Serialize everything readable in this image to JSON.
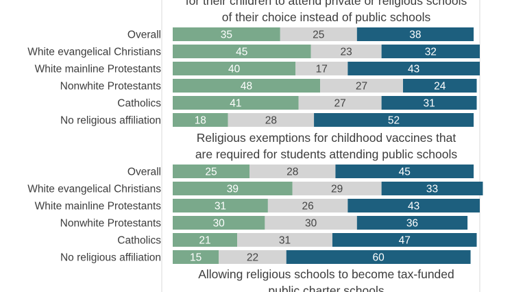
{
  "chart_data": {
    "type": "bar",
    "stacked": true,
    "orientation": "horizontal",
    "colors": [
      "#7aa98b",
      "#d4d4d4",
      "#1d5f7e"
    ],
    "categories": [
      "Overall",
      "White evangelical Christians",
      "White mainline Protestants",
      "Nonwhite Protestants",
      "Catholics",
      "No religious affiliation"
    ],
    "xlim": [
      0,
      100
    ],
    "grid": true,
    "panels": [
      {
        "title_lines": [
          "for their children to attend private or religious schools",
          "of their choice instead of public schools"
        ],
        "values": [
          [
            35,
            25,
            38
          ],
          [
            45,
            23,
            32
          ],
          [
            40,
            17,
            43
          ],
          [
            48,
            27,
            24
          ],
          [
            41,
            27,
            31
          ],
          [
            18,
            28,
            52
          ]
        ]
      },
      {
        "title_lines": [
          "Religious exemptions for childhood vaccines that",
          "are required for students attending public schools"
        ],
        "values": [
          [
            25,
            28,
            45
          ],
          [
            39,
            29,
            33
          ],
          [
            31,
            26,
            43
          ],
          [
            30,
            30,
            36
          ],
          [
            21,
            31,
            47
          ],
          [
            15,
            22,
            60
          ]
        ]
      },
      {
        "title_lines": [
          "Allowing religious schools to become tax-funded",
          "public charter schools"
        ],
        "values": []
      }
    ]
  }
}
